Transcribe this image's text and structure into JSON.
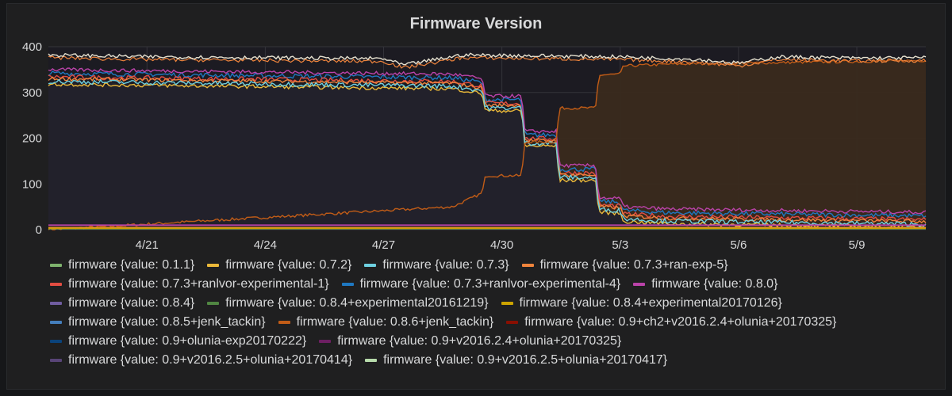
{
  "panel": {
    "title": "Firmware Version"
  },
  "chart_data": {
    "type": "area",
    "title": "Firmware Version",
    "xlabel": "",
    "ylabel": "",
    "ylim": [
      0,
      400
    ],
    "xlim": [
      "2017-04-18T12:00",
      "2017-05-10T18:00"
    ],
    "y_ticks": [
      0,
      100,
      200,
      300,
      400
    ],
    "x_ticks": [
      {
        "date": "2017-04-21",
        "label": "4/21"
      },
      {
        "date": "2017-04-24",
        "label": "4/24"
      },
      {
        "date": "2017-04-27",
        "label": "4/27"
      },
      {
        "date": "2017-04-30",
        "label": "4/30"
      },
      {
        "date": "2017-05-03",
        "label": "5/3"
      },
      {
        "date": "2017-05-06",
        "label": "5/6"
      },
      {
        "date": "2017-05-09",
        "label": "5/9"
      }
    ],
    "grid": true,
    "legend_position": "bottom",
    "series": [
      {
        "name": "firmware {value: 0.1.1}",
        "color": "#7eb26d"
      },
      {
        "name": "firmware {value: 0.7.2}",
        "color": "#eab839"
      },
      {
        "name": "firmware {value: 0.7.3}",
        "color": "#6ed0e0"
      },
      {
        "name": "firmware {value: 0.7.3+ran-exp-5}",
        "color": "#ef843c"
      },
      {
        "name": "firmware {value: 0.7.3+ranlvor-experimental-1}",
        "color": "#e24d42"
      },
      {
        "name": "firmware {value: 0.7.3+ranlvor-experimental-4}",
        "color": "#1f78c1"
      },
      {
        "name": "firmware {value: 0.8.0}",
        "color": "#ba43a9"
      },
      {
        "name": "firmware {value: 0.8.4}",
        "color": "#705da0"
      },
      {
        "name": "firmware {value: 0.8.4+experimental20161219}",
        "color": "#508642"
      },
      {
        "name": "firmware {value: 0.8.4+experimental20170126}",
        "color": "#cca300"
      },
      {
        "name": "firmware {value: 0.8.5+jenk_tackin}",
        "color": "#447ebc",
        "x": [
          "2017-04-18T12:00",
          "2017-04-28T18:00",
          "2017-04-29T12:00",
          "2017-04-29T14:00",
          "2017-04-30T12:00",
          "2017-04-30T14:00",
          "2017-05-01T09:00",
          "2017-05-01T11:00",
          "2017-05-02T09:00",
          "2017-05-02T11:00",
          "2017-05-03T00:00",
          "2017-05-03T02:00",
          "2017-05-04T06:00",
          "2017-05-10T18:00"
        ],
        "values": [
          320,
          310,
          300,
          262,
          262,
          185,
          185,
          110,
          110,
          40,
          38,
          20,
          15,
          8
        ]
      },
      {
        "name": "firmware {value: 0.8.6+jenk_tackin}",
        "color": "#c15c17",
        "x": [
          "2017-04-18T12:00",
          "2017-04-28T18:00",
          "2017-04-29T12:00",
          "2017-04-29T14:00",
          "2017-04-30T12:00",
          "2017-04-30T14:00",
          "2017-05-01T09:00",
          "2017-05-01T11:00",
          "2017-05-02T09:00",
          "2017-05-02T11:00",
          "2017-05-03T00:00",
          "2017-05-03T02:00",
          "2017-05-04T06:00",
          "2017-05-10T18:00"
        ],
        "values": [
          0,
          50,
          80,
          118,
          118,
          192,
          192,
          266,
          266,
          338,
          340,
          358,
          362,
          370
        ]
      },
      {
        "name": "firmware {value: 0.9+ch2+v2016.2.4+olunia+20170325}",
        "color": "#890f02"
      },
      {
        "name": "firmware {value: 0.9+olunia-exp20170222}",
        "color": "#0a437c"
      },
      {
        "name": "firmware {value: 0.9+v2016.2.4+olunia+20170325}",
        "color": "#6d1f62"
      },
      {
        "name": "firmware {value: 0.9+v2016.2.5+olunia+20170414}",
        "color": "#584477"
      },
      {
        "name": "firmware {value: 0.9+v2016.2.5+olunia+20170417}",
        "color": "#b7dbab"
      }
    ],
    "total_series": {
      "x": [
        "2017-04-18T12:00",
        "2017-04-21T00:00",
        "2017-04-24T00:00",
        "2017-04-27T00:00",
        "2017-04-27T12:00",
        "2017-04-29T00:00",
        "2017-05-01T00:00",
        "2017-05-03T00:00",
        "2017-05-05T00:00",
        "2017-05-06T00:00",
        "2017-05-07T00:00",
        "2017-05-09T00:00",
        "2017-05-10T18:00"
      ],
      "values": [
        382,
        378,
        376,
        374,
        360,
        382,
        380,
        378,
        372,
        364,
        378,
        375,
        376
      ]
    }
  }
}
